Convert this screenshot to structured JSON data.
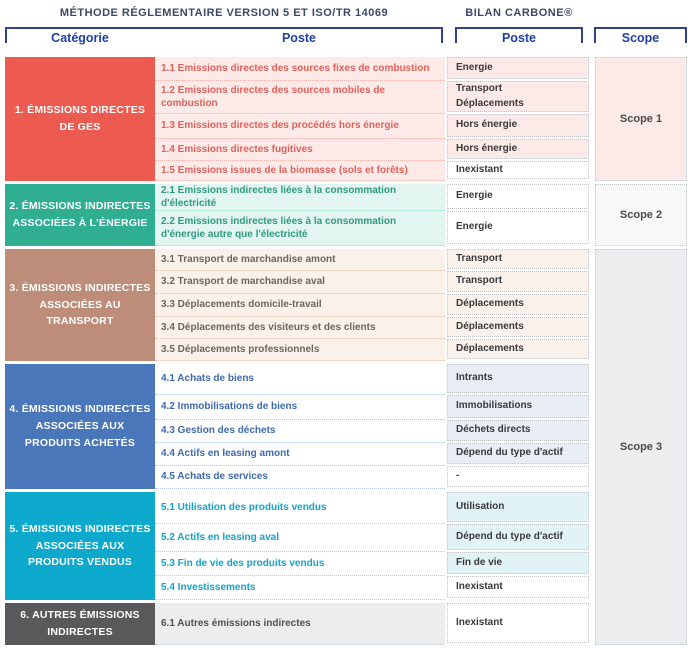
{
  "header": {
    "left_title": "MÉTHODE RÉGLEMENTAIRE VERSION 5 ET ISO/TR 14069",
    "right_title": "BILAN CARBONE®",
    "columns": {
      "categorie": "Catégorie",
      "poste_methode": "Poste",
      "poste_bilan": "Poste",
      "scope": "Scope"
    }
  },
  "colors": {
    "title_navy": "#3E4967",
    "label_blue": "#2140A6",
    "bracket_blue": "#32418F",
    "bilan_cell_border": "#C2C5C8",
    "bilan_text": "#39393B",
    "scope_text": "#4A4B4D"
  },
  "sections": [
    {
      "label": "1. ÉMISSIONS DIRECTES DE GES",
      "color": "#EC5A50",
      "row_bg": "#FBEAE7",
      "row_text": "#E2615A",
      "dot": "#F0B4AD",
      "bilan_bg": "#FBEAE7",
      "rows": [
        {
          "poste": "1.1 Emissions directes des sources fixes de combustion",
          "bilan": [
            "Energie"
          ]
        },
        {
          "poste": "1.2 Emissions directes des sources mobiles de combustion",
          "bilan": [
            "Transport",
            "Déplacements"
          ]
        },
        {
          "poste": "1.3 Emissions directes des procédés hors énergie",
          "bilan": [
            "Hors énergie"
          ]
        },
        {
          "poste": "1.4 Emissions directes fugitives",
          "bilan": [
            "Hors énergie"
          ]
        },
        {
          "poste": "1.5 Emissions issues de la biomasse (sols et forêts)",
          "bilan": [
            "Inexistant"
          ],
          "bilan_bg": "#FFFFFF"
        }
      ]
    },
    {
      "label": "2. ÉMISSIONS INDIRECTES ASSOCIÉES À L'ÉNERGIE",
      "color": "#2FAE91",
      "row_bg": "#E3F5F0",
      "row_text": "#2E9B82",
      "dot": "#A5DCCE",
      "bilan_bg": "#FFFFFF",
      "rows": [
        {
          "poste": "2.1 Emissions indirectes liées à la consommation d'électricité",
          "bilan": [
            "Energie"
          ]
        },
        {
          "poste": "2.2 Emissions indirectes liées à la consommation d'énergie autre que l'électricité",
          "bilan": [
            "Energie"
          ]
        }
      ]
    },
    {
      "label": "3. ÉMISSIONS INDIRECTES ASSOCIÉES AU TRANSPORT",
      "color": "#BD8D79",
      "row_bg": "#FAF1EA",
      "row_text": "#70655D",
      "dot": "#DCC2B0",
      "bilan_bg": "#FAF1EA",
      "rows": [
        {
          "poste": "3.1 Transport de marchandise amont",
          "bilan": [
            "Transport"
          ]
        },
        {
          "poste": "3.2 Transport de marchandise aval",
          "bilan": [
            "Transport"
          ]
        },
        {
          "poste": "3.3 Déplacements domicile-travail",
          "bilan": [
            "Déplacements"
          ]
        },
        {
          "poste": "3.4 Déplacements des visiteurs et des clients",
          "bilan": [
            "Déplacements"
          ]
        },
        {
          "poste": "3.5 Déplacements professionnels",
          "bilan": [
            "Déplacements"
          ]
        }
      ]
    },
    {
      "label": "4. ÉMISSIONS INDIRECTES ASSOCIÉES AUX PRODUITS ACHETÉS",
      "color": "#4A76BA",
      "row_bg": "#FFFFFF",
      "row_text": "#3E6AAE",
      "dot": "#AFC3E3",
      "bilan_bg": "#E9EDF6",
      "rows": [
        {
          "poste": "4.1 Achats de biens",
          "bilan": [
            "Intrants"
          ]
        },
        {
          "poste": "4.2 Immobilisations de biens",
          "bilan": [
            "Immobilisations"
          ]
        },
        {
          "poste": "4.3 Gestion des déchets",
          "bilan": [
            "Déchets directs"
          ]
        },
        {
          "poste": "4.4 Actifs en leasing amont",
          "bilan": [
            "Dépend du type d'actif"
          ]
        },
        {
          "poste": "4.5 Achats de services",
          "bilan": [
            "-"
          ],
          "bilan_bg": "#FFFFFF"
        }
      ]
    },
    {
      "label": "5. ÉMISSIONS INDIRECTES ASSOCIÉES AUX PRODUITS VENDUS",
      "color": "#0DA9CD",
      "row_bg": "#FFFFFF",
      "row_text": "#16A2C5",
      "dot": "#9FDCEC",
      "bilan_bg": "#E2F3F8",
      "rows": [
        {
          "poste": "5.1 Utilisation des produits vendus",
          "bilan": [
            "Utilisation"
          ]
        },
        {
          "poste": "5.2 Actifs en leasing aval",
          "bilan": [
            "Dépend du type d'actif"
          ]
        },
        {
          "poste": "5.3 Fin de vie des produits vendus",
          "bilan": [
            "Fin de vie"
          ]
        },
        {
          "poste": "5.4 Investissements",
          "bilan": [
            "Inexistant"
          ],
          "bilan_bg": "#FFFFFF"
        }
      ]
    },
    {
      "label": "6. AUTRES ÉMISSIONS INDIRECTES",
      "color": "#59595B",
      "row_bg": "#ECEDEE",
      "row_text": "#505052",
      "dot": "#C6C8CA",
      "bilan_bg": "#FFFFFF",
      "rows": [
        {
          "poste": "6.1 Autres émissions indirectes",
          "bilan": [
            "Inexistant"
          ]
        }
      ]
    }
  ],
  "scopes": [
    {
      "label": "Scope 1",
      "bg": "#FBEAE7"
    },
    {
      "label": "Scope 2",
      "bg": "#F7F8F8"
    },
    {
      "label": "Scope 3",
      "bg": "#ECEDEE"
    }
  ]
}
